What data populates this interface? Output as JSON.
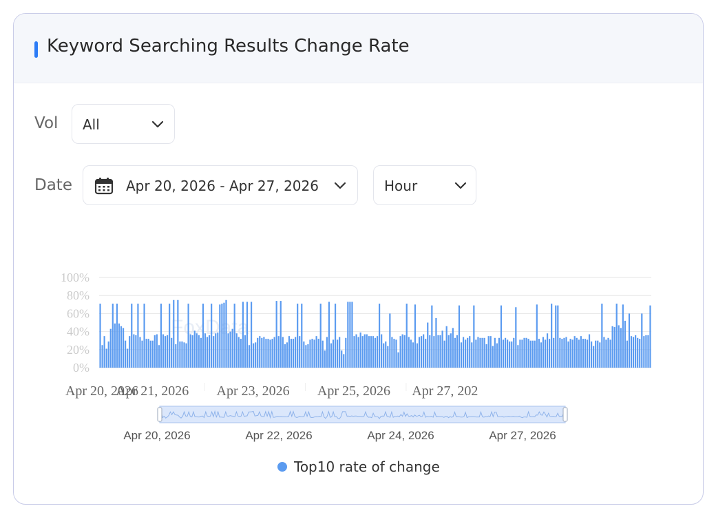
{
  "card": {
    "title": "Keyword Searching Results Change Rate"
  },
  "filters": {
    "vol_label": "Vol",
    "vol_value": "All",
    "date_label": "Date",
    "date_range": "Apr 20, 2026 - Apr 27, 2026",
    "granularity": "Hour"
  },
  "watermark": "FoxData",
  "icons": {
    "calendar": "calendar-icon",
    "chevron": "chevron-down-icon"
  },
  "colors": {
    "accent": "#2d7cf6",
    "bar": "#5b9bf0",
    "grid": "#e6e6e6",
    "tick": "#cccccc",
    "slider_fill": "#dbe7fb",
    "slider_border": "#a9c3ee"
  },
  "chart_data": {
    "type": "bar",
    "title": "",
    "xlabel": "",
    "ylabel": "",
    "ylim": [
      0,
      100
    ],
    "y_ticks": [
      "0%",
      "20%",
      "40%",
      "60%",
      "80%",
      "100%"
    ],
    "x_ticks": [
      "Apr 20, 2026",
      "Apr 21, 2026",
      "Apr 23, 2026",
      "Apr 25, 2026",
      "Apr 27, 202"
    ],
    "zoom_ticks": [
      "Apr 20, 2026",
      "Apr 22, 2026",
      "Apr 24, 2026",
      "Apr 27, 2026"
    ],
    "grid": true,
    "legend": "bottom-center",
    "series": [
      {
        "name": "Top10 rate of change",
        "values": [
          71,
          25,
          35,
          21,
          29,
          43,
          71,
          49,
          71,
          49,
          46,
          44,
          30,
          21,
          35,
          71,
          37,
          36,
          71,
          34,
          30,
          71,
          32,
          32,
          30,
          30,
          36,
          37,
          25,
          71,
          37,
          35,
          36,
          71,
          33,
          75,
          26,
          75,
          29,
          29,
          28,
          27,
          71,
          37,
          36,
          41,
          38,
          36,
          33,
          71,
          38,
          34,
          36,
          71,
          35,
          38,
          39,
          70,
          71,
          72,
          75,
          38,
          40,
          43,
          71,
          38,
          34,
          32,
          73,
          36,
          73,
          25,
          73,
          27,
          28,
          33,
          35,
          33,
          34,
          32,
          32,
          31,
          32,
          34,
          74,
          35,
          74,
          34,
          26,
          28,
          35,
          32,
          32,
          34,
          71,
          35,
          71,
          29,
          25,
          26,
          31,
          32,
          31,
          35,
          32,
          71,
          30,
          19,
          34,
          73,
          27,
          31,
          71,
          31,
          34,
          19,
          15,
          33,
          73,
          73,
          73,
          35,
          37,
          34,
          39,
          35,
          37,
          37,
          35,
          35,
          35,
          33,
          35,
          71,
          37,
          27,
          29,
          24,
          60,
          34,
          32,
          31,
          17,
          35,
          37,
          36,
          71,
          34,
          31,
          28,
          70,
          27,
          34,
          35,
          37,
          32,
          50,
          36,
          69,
          35,
          55,
          36,
          36,
          41,
          30,
          46,
          36,
          38,
          44,
          33,
          36,
          69,
          28,
          34,
          31,
          33,
          35,
          28,
          69,
          31,
          34,
          33,
          33,
          33,
          26,
          35,
          35,
          24,
          33,
          27,
          33,
          69,
          31,
          33,
          31,
          29,
          29,
          33,
          67,
          25,
          31,
          31,
          33,
          33,
          32,
          30,
          30,
          30,
          70,
          32,
          28,
          34,
          31,
          38,
          32,
          71,
          33,
          69,
          69,
          33,
          32,
          33,
          34,
          29,
          32,
          31,
          35,
          33,
          31,
          35,
          32,
          32,
          31,
          37,
          29,
          24,
          30,
          30,
          28,
          71,
          34,
          31,
          33,
          31,
          46,
          45,
          71,
          47,
          44,
          70,
          52,
          30,
          60,
          35,
          34,
          36,
          33,
          32,
          60,
          35,
          36,
          36,
          69
        ]
      }
    ]
  }
}
